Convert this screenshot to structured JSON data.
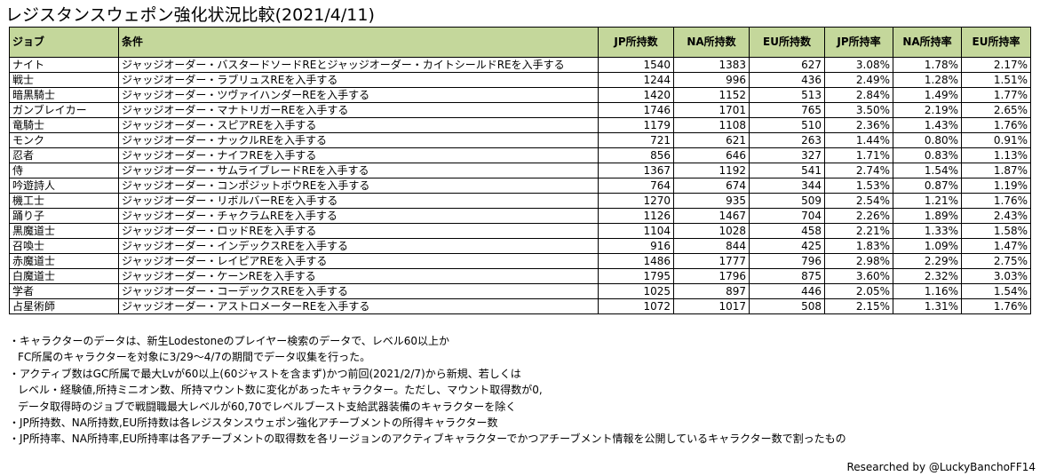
{
  "title": "レジスタンスウェポン強化状況比較(2021/4/11)",
  "table": {
    "headers": [
      "ジョブ",
      "条件",
      "JP所持数",
      "NA所持数",
      "EU所持数",
      "JP所持率",
      "NA所持率",
      "EU所持率"
    ],
    "rows": [
      [
        "ナイト",
        "ジャッジオーダー・バスタードソードREとジャッジオーダー・カイトシールドREを入手する",
        "1540",
        "1383",
        "627",
        "3.08%",
        "1.78%",
        "2.17%"
      ],
      [
        "戦士",
        "ジャッジオーダー・ラブリュスREを入手する",
        "1244",
        "996",
        "436",
        "2.49%",
        "1.28%",
        "1.51%"
      ],
      [
        "暗黒騎士",
        "ジャッジオーダー・ツヴァイハンダーREを入手する",
        "1420",
        "1152",
        "513",
        "2.84%",
        "1.49%",
        "1.77%"
      ],
      [
        "ガンブレイカー",
        "ジャッジオーダー・マナトリガーREを入手する",
        "1746",
        "1701",
        "765",
        "3.50%",
        "2.19%",
        "2.65%"
      ],
      [
        "竜騎士",
        "ジャッジオーダー・スピアREを入手する",
        "1179",
        "1108",
        "510",
        "2.36%",
        "1.43%",
        "1.76%"
      ],
      [
        "モンク",
        "ジャッジオーダー・ナックルREを入手する",
        "721",
        "621",
        "263",
        "1.44%",
        "0.80%",
        "0.91%"
      ],
      [
        "忍者",
        "ジャッジオーダー・ナイフREを入手する",
        "856",
        "646",
        "327",
        "1.71%",
        "0.83%",
        "1.13%"
      ],
      [
        "侍",
        "ジャッジオーダー・サムライブレードREを入手する",
        "1367",
        "1192",
        "541",
        "2.74%",
        "1.54%",
        "1.87%"
      ],
      [
        "吟遊詩人",
        "ジャッジオーダー・コンポジットボウREを入手する",
        "764",
        "674",
        "344",
        "1.53%",
        "0.87%",
        "1.19%"
      ],
      [
        "機工士",
        "ジャッジオーダー・リボルバーREを入手する",
        "1270",
        "935",
        "509",
        "2.54%",
        "1.21%",
        "1.76%"
      ],
      [
        "踊り子",
        "ジャッジオーダー・チャクラムREを入手する",
        "1126",
        "1467",
        "704",
        "2.26%",
        "1.89%",
        "2.43%"
      ],
      [
        "黒魔道士",
        "ジャッジオーダー・ロッドREを入手する",
        "1104",
        "1028",
        "458",
        "2.21%",
        "1.33%",
        "1.58%"
      ],
      [
        "召喚士",
        "ジャッジオーダー・インデックスREを入手する",
        "916",
        "844",
        "425",
        "1.83%",
        "1.09%",
        "1.47%"
      ],
      [
        "赤魔道士",
        "ジャッジオーダー・レイピアREを入手する",
        "1486",
        "1777",
        "796",
        "2.98%",
        "2.29%",
        "2.75%"
      ],
      [
        "白魔道士",
        "ジャッジオーダー・ケーンREを入手する",
        "1795",
        "1796",
        "875",
        "3.60%",
        "2.32%",
        "3.03%"
      ],
      [
        "学者",
        "ジャッジオーダー・コーデックスREを入手する",
        "1025",
        "897",
        "446",
        "2.05%",
        "1.16%",
        "1.54%"
      ],
      [
        "占星術師",
        "ジャッジオーダー・アストロメーターREを入手する",
        "1072",
        "1017",
        "508",
        "2.15%",
        "1.31%",
        "1.76%"
      ]
    ]
  },
  "notes": [
    {
      "text": "・キャラクターのデータは、新生Lodestoneのプレイヤー検索のデータで、レベル60以上か",
      "indent": false
    },
    {
      "text": "FC所属のキャラクターを対象に3/29～4/7の期間でデータ収集を行った。",
      "indent": true
    },
    {
      "text": "・アクティブ数はGC所属で最大Lvが60以上(60ジャストを含まず)かつ前回(2021/2/7)から新規、若しくは",
      "indent": false
    },
    {
      "text": "レベル・経験値,所持ミニオン数、所持マウント数に変化があったキャラクター。ただし、マウント取得数が0,",
      "indent": true
    },
    {
      "text": "データ取得時のジョブで戦闘職最大レベルが60,70でレベルブースト支給武器装備のキャラクターを除く",
      "indent": true
    },
    {
      "text": "・JP所持数、NA所持数,EU所持数は各レジスタンスウェポン強化アチーブメントの所得キャラクター数",
      "indent": false
    },
    {
      "text": "・JP所持率、NA所持率,EU所持率は各アチーブメントの取得数を各リージョンのアクティブキャラクターでかつアチーブメント情報を公開しているキャラクター数で割ったもの",
      "indent": false
    }
  ],
  "credit": "Researched by @LuckyBanchoFF14"
}
